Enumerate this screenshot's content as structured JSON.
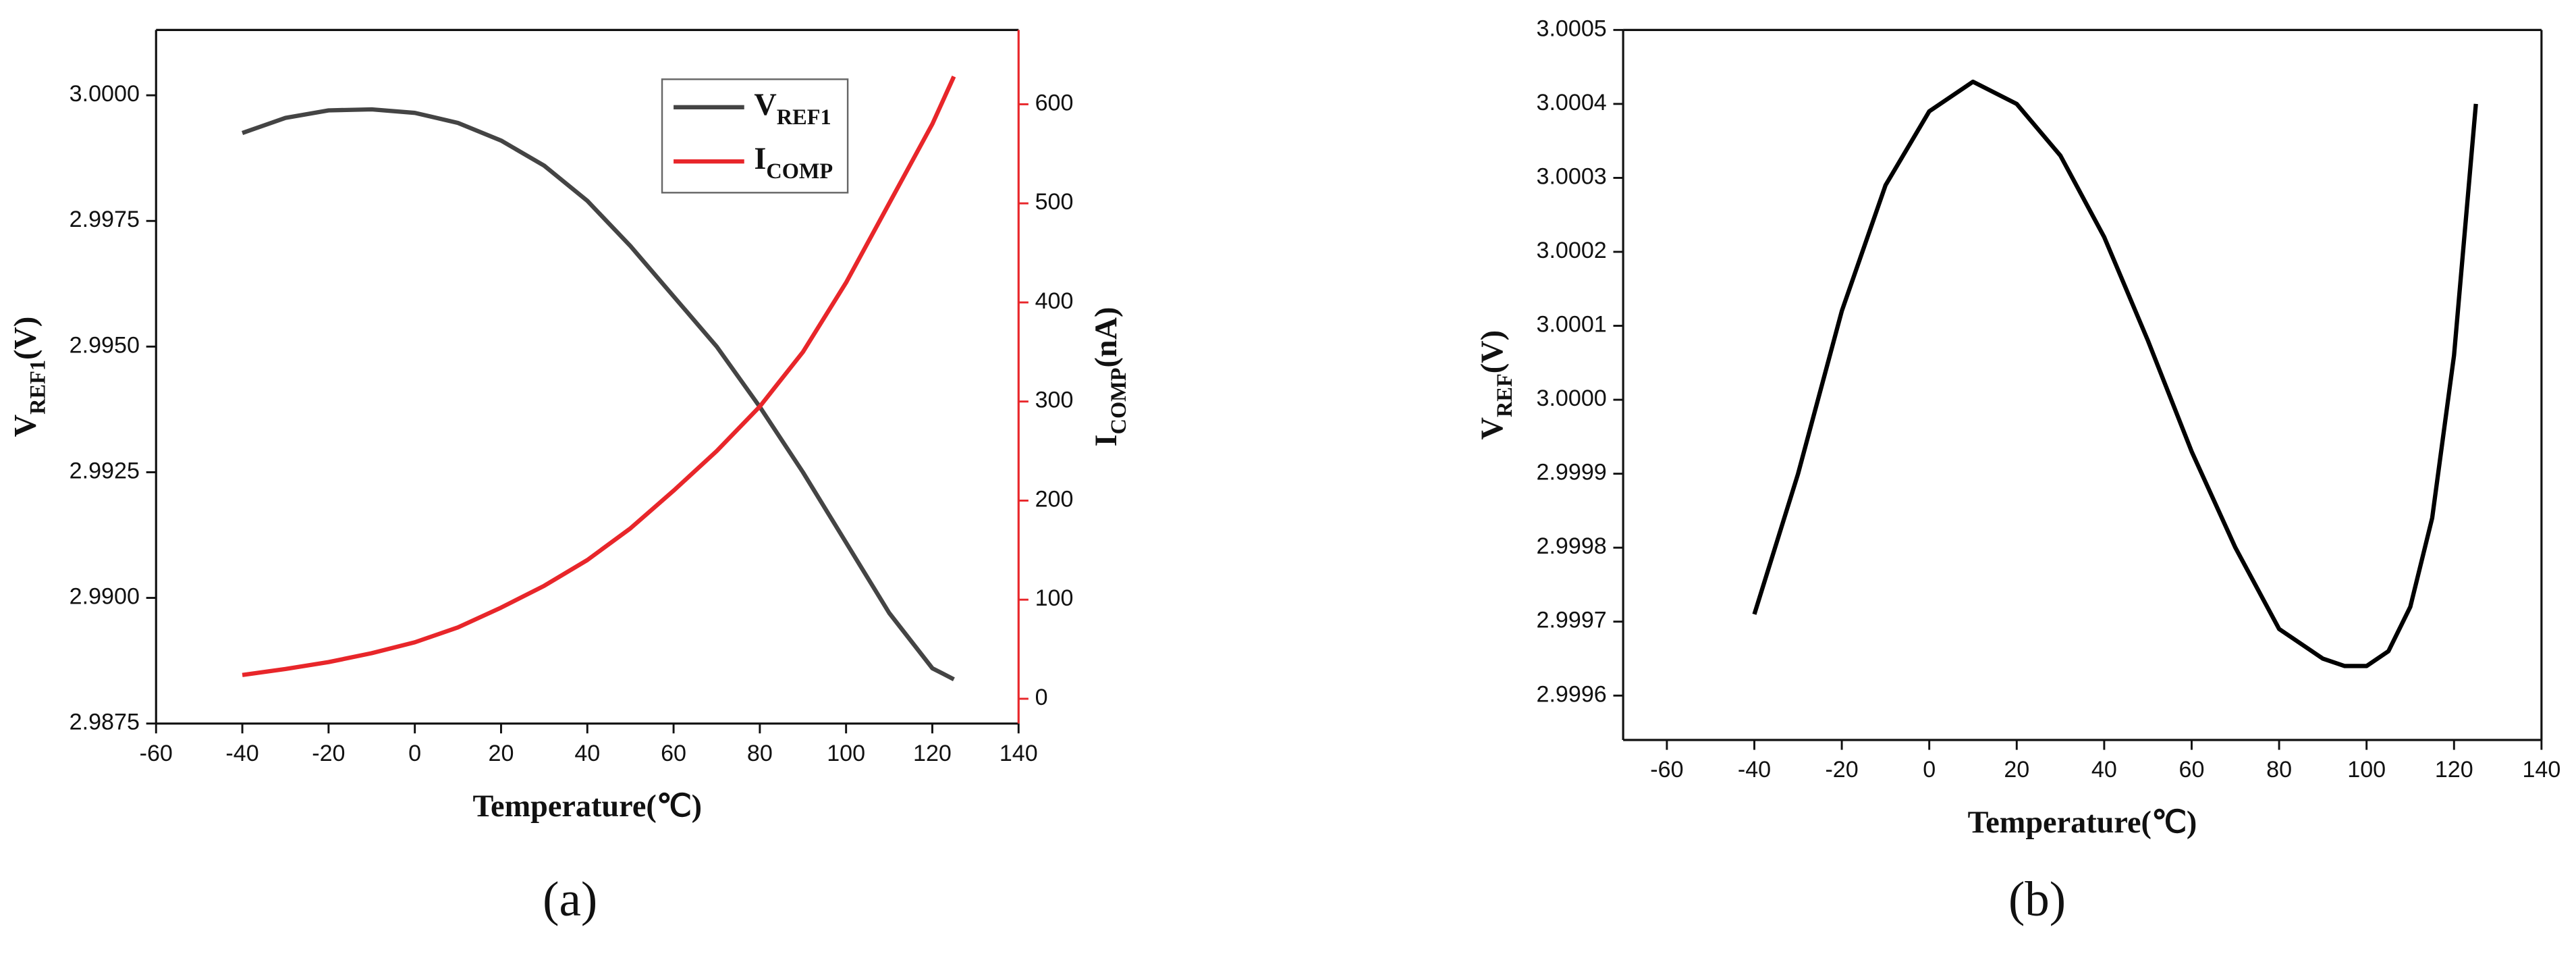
{
  "chart_data": [
    {
      "type": "line",
      "caption": "(a)",
      "xlabel": "Temperature(℃)",
      "ylabel": [
        "V",
        "REF1",
        "(V)"
      ],
      "y2label": [
        "I",
        "COMP",
        "(nA)"
      ],
      "x": [
        -40,
        -30,
        -20,
        -10,
        0,
        10,
        20,
        30,
        40,
        50,
        60,
        70,
        80,
        90,
        100,
        110,
        120,
        125
      ],
      "series": [
        {
          "name": [
            "V",
            "REF1"
          ],
          "color": "#444444",
          "values": [
            2.99925,
            2.99955,
            2.9997,
            2.99972,
            2.99965,
            2.99945,
            2.9991,
            2.9986,
            2.9979,
            2.997,
            2.996,
            2.995,
            2.9938,
            2.9925,
            2.9911,
            2.9897,
            2.9886,
            2.98838
          ]
        },
        {
          "name": [
            "I",
            "COMP"
          ],
          "color": "#e8262a",
          "axis": "y2",
          "values": [
            24,
            30,
            37,
            46,
            57,
            72,
            92,
            114,
            140,
            172,
            210,
            250,
            295,
            350,
            420,
            500,
            580,
            628
          ]
        }
      ],
      "xlim": [
        -60,
        140
      ],
      "xticks": [
        -60,
        -40,
        -20,
        0,
        20,
        40,
        60,
        80,
        100,
        120,
        140
      ],
      "ylim": [
        2.9875,
        3.0013
      ],
      "yticks": [
        2.9875,
        {
          "value": 2.99,
          "label": "2.9900"
        },
        2.9925,
        {
          "value": 2.995,
          "label": "2.9950"
        },
        2.9975,
        {
          "value": 3,
          "label": "3.0000"
        }
      ],
      "y2lim": [
        -25,
        675
      ],
      "y2ticks": [
        0,
        100,
        200,
        300,
        400,
        500,
        600
      ],
      "y2color": "#e8262a",
      "legend": "top-right"
    },
    {
      "type": "line",
      "caption": "(b)",
      "xlabel": "Temperature(℃)",
      "ylabel": [
        "V",
        "REF",
        "(V)"
      ],
      "x": [
        -40,
        -30,
        -20,
        -10,
        0,
        10,
        20,
        30,
        40,
        50,
        60,
        70,
        80,
        90,
        95,
        100,
        105,
        110,
        115,
        120,
        125
      ],
      "series": [
        {
          "color": "#000000",
          "values": [
            2.99971,
            2.9999,
            3.00012,
            3.00029,
            3.00039,
            3.00043,
            3.0004,
            3.00033,
            3.00022,
            3.00008,
            2.99993,
            2.9998,
            2.99969,
            2.99965,
            2.99964,
            2.99964,
            2.99966,
            2.99972,
            2.99984,
            3.00006,
            3.0004
          ]
        }
      ],
      "xlim": [
        -70,
        140
      ],
      "xticks": [
        -60,
        -40,
        -20,
        0,
        20,
        40,
        60,
        80,
        100,
        120,
        140
      ],
      "ylim": [
        2.99954,
        3.0005
      ],
      "yticks": [
        2.9996,
        2.9997,
        2.9998,
        2.9999,
        {
          "value": 3,
          "label": "3.0000"
        },
        3.0001,
        3.0002,
        3.0003,
        3.0004,
        3.0005
      ]
    }
  ]
}
